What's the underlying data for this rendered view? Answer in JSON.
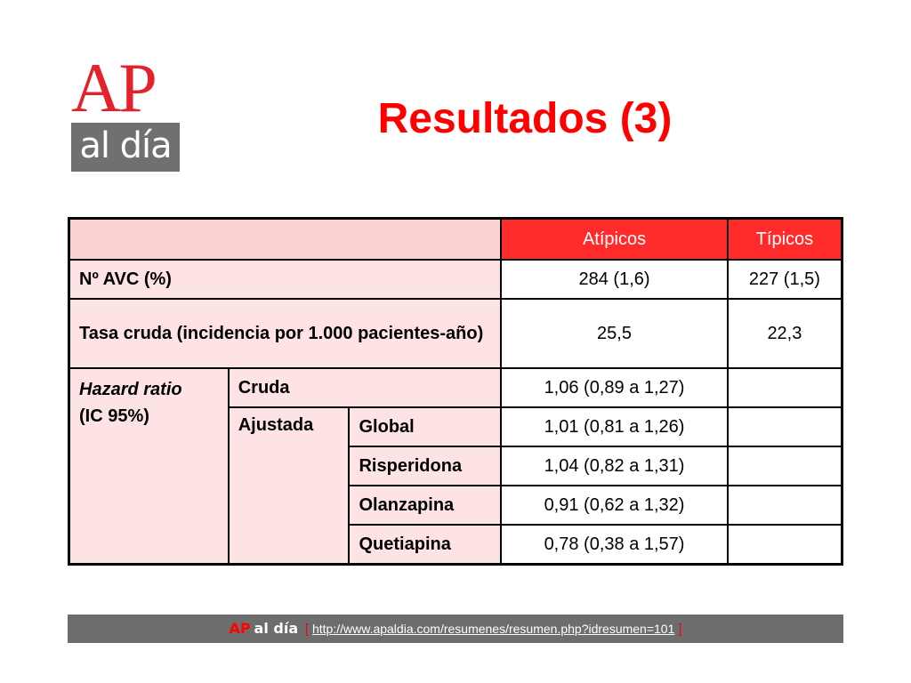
{
  "logo": {
    "top_text": "AP",
    "bottom_text": "al día",
    "colors": {
      "red": "#e3232c",
      "gray": "#707070"
    }
  },
  "title": "Resultados (3)",
  "table": {
    "header": {
      "col1": "",
      "atipicos": "Atípicos",
      "tipicos": "Típicos"
    },
    "row_avc": {
      "label": "Nº AVC (%)",
      "atipicos": "284 (1,6)",
      "tipicos": "227 (1,5)"
    },
    "row_tasa": {
      "label": "Tasa cruda (incidencia por 1.000 pacientes-año)",
      "atipicos": "25,5",
      "tipicos": "22,3"
    },
    "hazard": {
      "label_italic": "Hazard ratio",
      "label_rest": "(IC 95%)",
      "cruda": {
        "label": "Cruda",
        "atipicos": "1,06 (0,89 a 1,27)",
        "tipicos": ""
      },
      "ajustada": {
        "label": "Ajustada",
        "rows": [
          {
            "label": "Global",
            "atipicos": "1,01 (0,81 a 1,26)",
            "tipicos": ""
          },
          {
            "label": "Risperidona",
            "atipicos": "1,04 (0,82 a 1,31)",
            "tipicos": ""
          },
          {
            "label": "Olanzapina",
            "atipicos": "0,91 (0,62 a 1,32)",
            "tipicos": ""
          },
          {
            "label": "Quetiapina",
            "atipicos": "0,78 (0,38 a 1,57)",
            "tipicos": ""
          }
        ]
      }
    },
    "colors": {
      "header_red": "#ff2a2a",
      "header_pink": "#fbd1d1",
      "row_pink": "#fde3e3"
    }
  },
  "footer": {
    "brand_ap": "AP",
    "brand_aldia": "al día",
    "bracket_open": "[",
    "link": "http://www.apaldia.com/resumenes/resumen.php?idresumen=101",
    "bracket_close": "]",
    "colors": {
      "bar": "#6d6d6d",
      "accent": "#ff0000"
    }
  }
}
